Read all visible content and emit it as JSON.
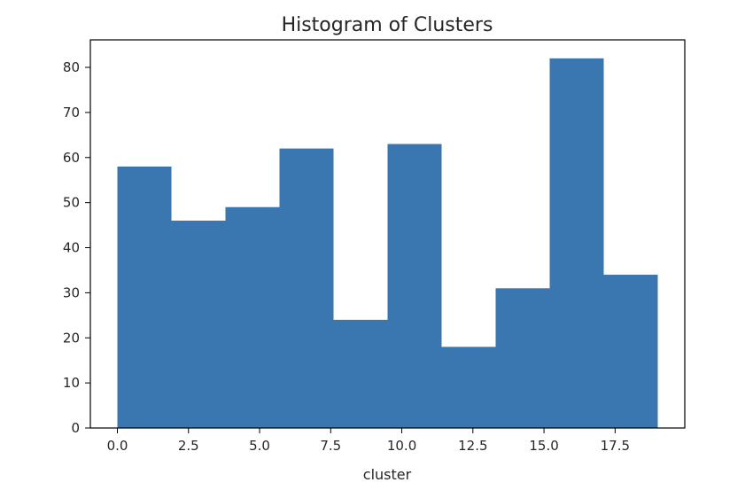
{
  "chart_data": {
    "type": "bar",
    "title": "Histogram of Clusters",
    "xlabel": "cluster",
    "ylabel": "",
    "bin_edges": [
      0.0,
      1.9,
      3.8,
      5.7,
      7.6,
      9.5,
      11.4,
      13.3,
      15.2,
      17.1,
      19.0
    ],
    "values": [
      58,
      46,
      49,
      62,
      24,
      63,
      18,
      31,
      82,
      34
    ],
    "xlim": [
      -0.95,
      19.95
    ],
    "ylim": [
      0,
      86.1
    ],
    "x_ticks": [
      0.0,
      2.5,
      5.0,
      7.5,
      10.0,
      12.5,
      15.0,
      17.5
    ],
    "x_tick_labels": [
      "0.0",
      "2.5",
      "5.0",
      "7.5",
      "10.0",
      "12.5",
      "15.0",
      "17.5"
    ],
    "y_ticks": [
      0,
      10,
      20,
      30,
      40,
      50,
      60,
      70,
      80
    ],
    "y_tick_labels": [
      "0",
      "10",
      "20",
      "30",
      "40",
      "50",
      "60",
      "70",
      "80"
    ],
    "bar_color": "#3a76af",
    "grid": false,
    "legend": false
  }
}
